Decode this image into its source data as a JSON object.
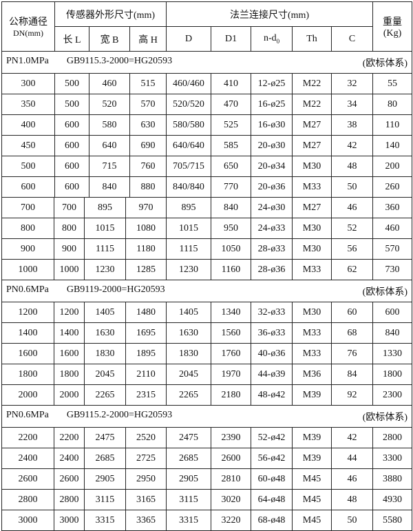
{
  "header": {
    "dn_label": "公称通径",
    "dn_unit": "DN(mm)",
    "sensor_group": "传感器外形尺寸(mm)",
    "flange_group": "法兰连接尺寸(mm)",
    "weight_label": "重量",
    "weight_unit": "(Kg)",
    "cols": [
      "长 L",
      "宽 B",
      "高 H",
      "D",
      "D1",
      "n-d",
      "Th",
      "C"
    ],
    "nd_sub": "0"
  },
  "sections": [
    {
      "pressure": "PN1.0MPa",
      "standard": "GB9115.3-2000=HG20593",
      "system": "(欧标体系)",
      "rows": [
        [
          "300",
          "500",
          "460",
          "515",
          "460/460",
          "410",
          "12-ø25",
          "M22",
          "32",
          "55"
        ],
        [
          "350",
          "500",
          "520",
          "570",
          "520/520",
          "470",
          "16-ø25",
          "M22",
          "34",
          "80"
        ],
        [
          "400",
          "600",
          "580",
          "630",
          "580/580",
          "525",
          "16-ø30",
          "M27",
          "38",
          "110"
        ],
        [
          "450",
          "600",
          "640",
          "690",
          "640/640",
          "585",
          "20-ø30",
          "M27",
          "42",
          "140"
        ],
        [
          "500",
          "600",
          "715",
          "760",
          "705/715",
          "650",
          "20-ø34",
          "M30",
          "48",
          "200"
        ],
        [
          "600",
          "600",
          "840",
          "880",
          "840/840",
          "770",
          "20-ø36",
          "M33",
          "50",
          "260"
        ],
        [
          "700",
          "700",
          "895",
          "970",
          "895",
          "840",
          "24-ø30",
          "M27",
          "46",
          "360"
        ],
        [
          "800",
          "800",
          "1015",
          "1080",
          "1015",
          "950",
          "24-ø33",
          "M30",
          "52",
          "460"
        ],
        [
          "900",
          "900",
          "1115",
          "1180",
          "1115",
          "1050",
          "28-ø33",
          "M30",
          "56",
          "570"
        ],
        [
          "1000",
          "1000",
          "1230",
          "1285",
          "1230",
          "1160",
          "28-ø36",
          "M33",
          "62",
          "730"
        ]
      ]
    },
    {
      "pressure": "PN0.6MPa",
      "standard": "GB9119-2000=HG20593",
      "system": "(欧标体系)",
      "rows": [
        [
          "1200",
          "1200",
          "1405",
          "1480",
          "1405",
          "1340",
          "32-ø33",
          "M30",
          "60",
          "600"
        ],
        [
          "1400",
          "1400",
          "1630",
          "1695",
          "1630",
          "1560",
          "36-ø33",
          "M33",
          "68",
          "840"
        ],
        [
          "1600",
          "1600",
          "1830",
          "1895",
          "1830",
          "1760",
          "40-ø36",
          "M33",
          "76",
          "1330"
        ],
        [
          "1800",
          "1800",
          "2045",
          "2110",
          "2045",
          "1970",
          "44-ø39",
          "M36",
          "84",
          "1800"
        ],
        [
          "2000",
          "2000",
          "2265",
          "2315",
          "2265",
          "2180",
          "48-ø42",
          "M39",
          "92",
          "2300"
        ]
      ]
    },
    {
      "pressure": "PN0.6MPa",
      "standard": "GB9115.2-2000=HG20593",
      "system": "(欧标体系)",
      "rows": [
        [
          "2200",
          "2200",
          "2475",
          "2520",
          "2475",
          "2390",
          "52-ø42",
          "M39",
          "42",
          "2800"
        ],
        [
          "2400",
          "2400",
          "2685",
          "2725",
          "2685",
          "2600",
          "56-ø42",
          "M39",
          "44",
          "3300"
        ],
        [
          "2600",
          "2600",
          "2905",
          "2950",
          "2905",
          "2810",
          "60-ø48",
          "M45",
          "46",
          "3880"
        ],
        [
          "2800",
          "2800",
          "3115",
          "3165",
          "3115",
          "3020",
          "64-ø48",
          "M45",
          "48",
          "4930"
        ],
        [
          "3000",
          "3000",
          "3315",
          "3365",
          "3315",
          "3220",
          "68-ø48",
          "M45",
          "50",
          "5580"
        ]
      ]
    }
  ]
}
